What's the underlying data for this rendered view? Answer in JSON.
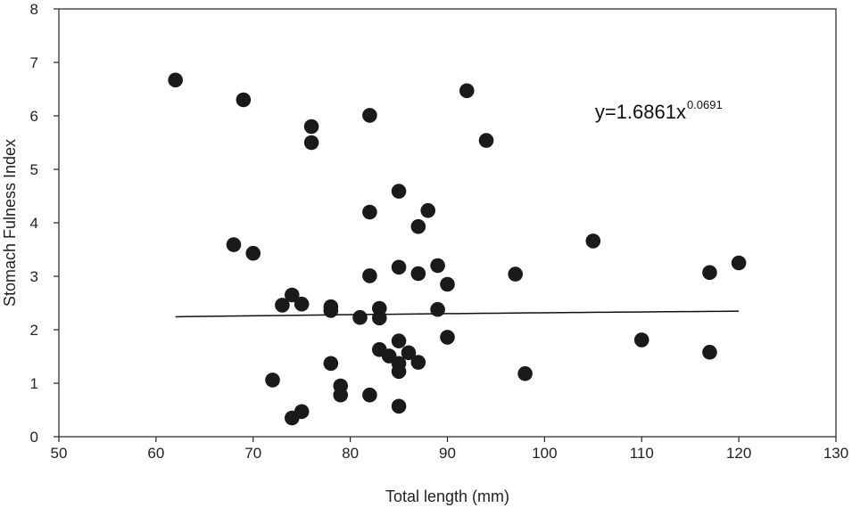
{
  "chart_data": {
    "type": "scatter",
    "title": "",
    "xlabel": "Total length (mm)",
    "ylabel": "Stomach Fulness Index",
    "xlim": [
      50,
      130
    ],
    "ylim": [
      0,
      8
    ],
    "x_ticks": [
      "50",
      "60",
      "70",
      "80",
      "90",
      "100",
      "110",
      "120",
      "130"
    ],
    "y_ticks": [
      "0",
      "1",
      "2",
      "3",
      "4",
      "5",
      "6",
      "7",
      "8"
    ],
    "grid": false,
    "point_color": "#1a1a1a",
    "series": [
      {
        "name": "observations",
        "points": [
          [
            62,
            6.67
          ],
          [
            69,
            6.3
          ],
          [
            76,
            5.8
          ],
          [
            76,
            5.5
          ],
          [
            82,
            6.01
          ],
          [
            92,
            6.47
          ],
          [
            94,
            5.54
          ],
          [
            85,
            4.59
          ],
          [
            82,
            4.2
          ],
          [
            88,
            4.23
          ],
          [
            87,
            3.93
          ],
          [
            68,
            3.59
          ],
          [
            70,
            3.43
          ],
          [
            105,
            3.66
          ],
          [
            85,
            3.17
          ],
          [
            89,
            3.2
          ],
          [
            82,
            3.01
          ],
          [
            87,
            3.05
          ],
          [
            97,
            3.04
          ],
          [
            90,
            2.85
          ],
          [
            117,
            3.07
          ],
          [
            120,
            3.25
          ],
          [
            74,
            2.65
          ],
          [
            73,
            2.46
          ],
          [
            75,
            2.48
          ],
          [
            78,
            2.43
          ],
          [
            78,
            2.36
          ],
          [
            83,
            2.4
          ],
          [
            81,
            2.23
          ],
          [
            83,
            2.22
          ],
          [
            89,
            2.38
          ],
          [
            90,
            1.86
          ],
          [
            85,
            1.79
          ],
          [
            83,
            1.63
          ],
          [
            84,
            1.51
          ],
          [
            86,
            1.57
          ],
          [
            110,
            1.81
          ],
          [
            117,
            1.58
          ],
          [
            78,
            1.37
          ],
          [
            85,
            1.37
          ],
          [
            87,
            1.39
          ],
          [
            85,
            1.22
          ],
          [
            98,
            1.18
          ],
          [
            72,
            1.06
          ],
          [
            79,
            0.95
          ],
          [
            79,
            0.78
          ],
          [
            82,
            0.78
          ],
          [
            85,
            0.57
          ],
          [
            75,
            0.47
          ],
          [
            74,
            0.35
          ]
        ]
      }
    ],
    "trendline": {
      "type": "power",
      "coefficient": 1.6861,
      "exponent": 0.0691,
      "x_range": [
        62,
        120
      ],
      "color": "#111111"
    },
    "annotation": {
      "equation_base": "y=1.6861x",
      "equation_exponent": "0.0691",
      "anchor_data": [
        105,
        5.95
      ]
    }
  }
}
